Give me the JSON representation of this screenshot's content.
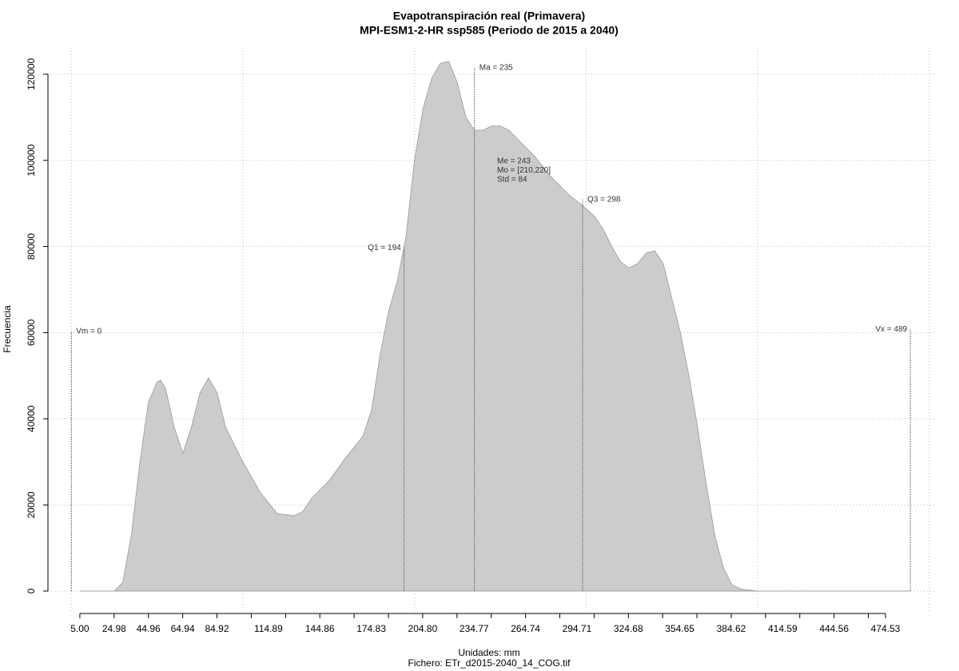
{
  "chart_data": {
    "type": "area",
    "title": "Evapotranspiración real (Primavera)",
    "subtitle": "MPI-ESM1-2-HR ssp585 (Periodo de 2015 a 2040)",
    "xlabel": "Unidades: mm",
    "footer": "Fichero: ETr_d2015-2040_14_COG.tif",
    "ylabel": "Frecuencia",
    "color": "#cccccc",
    "x": [
      5,
      20,
      25,
      30,
      35,
      40,
      45,
      50,
      52,
      55,
      60,
      65,
      70,
      75,
      80,
      85,
      90,
      95,
      100,
      110,
      120,
      130,
      135,
      140,
      150,
      160,
      170,
      175,
      180,
      185,
      190,
      195,
      200,
      205,
      210,
      215,
      220,
      225,
      230,
      235,
      240,
      245,
      250,
      255,
      260,
      270,
      280,
      290,
      298,
      305,
      310,
      315,
      320,
      325,
      330,
      335,
      340,
      345,
      350,
      355,
      360,
      365,
      370,
      375,
      380,
      385,
      390,
      400,
      489
    ],
    "values": [
      0,
      0,
      0,
      2000,
      13000,
      30000,
      44000,
      48500,
      49000,
      47000,
      38000,
      32000,
      38000,
      46000,
      49500,
      46000,
      38000,
      34000,
      30000,
      23000,
      18000,
      17500,
      18500,
      21500,
      25500,
      31000,
      36000,
      42000,
      55000,
      65000,
      72000,
      82000,
      100000,
      112000,
      119000,
      122500,
      123000,
      118000,
      110000,
      107000,
      107000,
      108000,
      108000,
      107000,
      105000,
      101000,
      96000,
      92000,
      89500,
      87000,
      84000,
      80000,
      76500,
      75000,
      76000,
      78500,
      79000,
      76000,
      68000,
      60000,
      50000,
      38000,
      25000,
      13000,
      5500,
      1500,
      500,
      0,
      0
    ],
    "xlim": [
      -13.6,
      503.4
    ],
    "ylim": [
      -5200,
      126100
    ],
    "xticks": [
      {
        "value": 5,
        "label": "5.00"
      },
      24.98,
      44.96,
      64.94,
      84.92,
      104.9,
      124.88,
      144.86,
      164.84,
      184.82,
      204.8,
      224.78,
      244.76,
      264.74,
      284.72,
      304.7,
      324.68,
      344.66,
      364.64,
      384.62,
      404.6,
      424.58,
      444.56,
      464.54,
      474.53
    ],
    "xtick_labels_shown": [
      {
        "value": 5,
        "label": "5.00"
      },
      24.98,
      44.96,
      64.94,
      84.92,
      114.89,
      144.86,
      174.83,
      {
        "value": 204.8,
        "label": "204.80"
      },
      234.77,
      264.74,
      294.71,
      324.68,
      354.65,
      384.62,
      414.59,
      444.56,
      474.53
    ],
    "yticks": [
      0,
      20000,
      40000,
      60000,
      80000,
      100000,
      120000
    ],
    "xgrid": [
      0,
      100,
      200,
      300,
      400,
      500
    ],
    "grid": true,
    "annotations": [
      {
        "label": "Vm = 0",
        "x": 0,
        "y": 60300
      },
      {
        "label": "Q1 = 194",
        "x": 194,
        "y": 79700
      },
      {
        "label": "Ma = 235",
        "x": 235,
        "y": 121500
      },
      {
        "label": "Q3 = 298",
        "x": 298,
        "y": 90900
      },
      {
        "label": "Vx = 489",
        "x": 489,
        "y": 60800
      }
    ],
    "stats": [
      "Me = 243",
      "Mo = [210,220]",
      "Std = 84"
    ]
  }
}
